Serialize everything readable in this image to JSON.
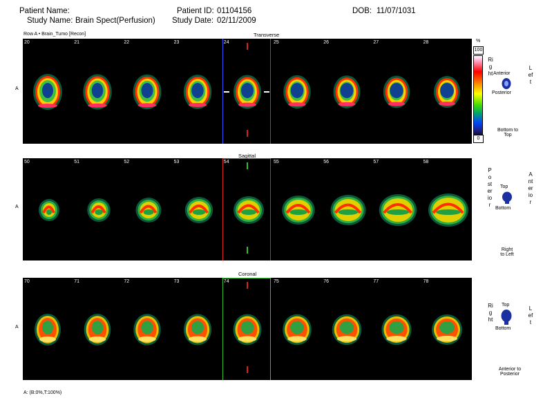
{
  "header": {
    "patient_name_label": "Patient Name:",
    "study_name_label": "Study Name:",
    "study_name_value": "Brain Spect(Perfusion)",
    "patient_id_label": "Patient ID:",
    "patient_id_value": "01104156",
    "study_date_label": "Study Date:",
    "study_date_value": "02/11/2009",
    "dob_label": "DOB:",
    "dob_value": "11/07/1031"
  },
  "series_label": "Row A • Brain_Tumo [Recon]",
  "sections": [
    {
      "title": "Transverse",
      "row_label": "A",
      "slices": [
        "20",
        "21",
        "22",
        "23",
        "24",
        "25",
        "26",
        "27",
        "28"
      ],
      "selected_index": 4,
      "highlight_color": "#3050ff",
      "marker_color": "#e02020"
    },
    {
      "title": "Sagittal",
      "row_label": "A",
      "slices": [
        "50",
        "51",
        "52",
        "53",
        "54",
        "55",
        "56",
        "57",
        "58"
      ],
      "selected_index": 4,
      "highlight_color": "#e02020",
      "marker_color": "#30c030"
    },
    {
      "title": "Coronal",
      "row_label": "A",
      "slices": [
        "70",
        "71",
        "72",
        "73",
        "74",
        "75",
        "76",
        "77",
        "78"
      ],
      "selected_index": 4,
      "highlight_color": "#30c030",
      "marker_color": "#e02020"
    }
  ],
  "colorbar": {
    "unit": "%",
    "max": "100",
    "min": "0"
  },
  "orientation": {
    "transverse": {
      "right": "Right",
      "left": "Left",
      "anterior": "Anterior",
      "posterior": "Posterior",
      "direction": "Bottom to Top"
    },
    "sagittal": {
      "posterior": "Posterior",
      "anterior": "Anterior",
      "top": "Top",
      "bottom": "Bottom",
      "direction": "Right to Left"
    },
    "coronal": {
      "right": "Right",
      "left": "Left",
      "top": "Top",
      "bottom": "Bottom",
      "direction": "Anterior to Posterior"
    }
  },
  "footer": "A: (B:0%,T:100%)",
  "icons": {
    "head_top": "head-top-icon",
    "head_side": "head-side-icon",
    "head_front": "head-front-icon"
  }
}
